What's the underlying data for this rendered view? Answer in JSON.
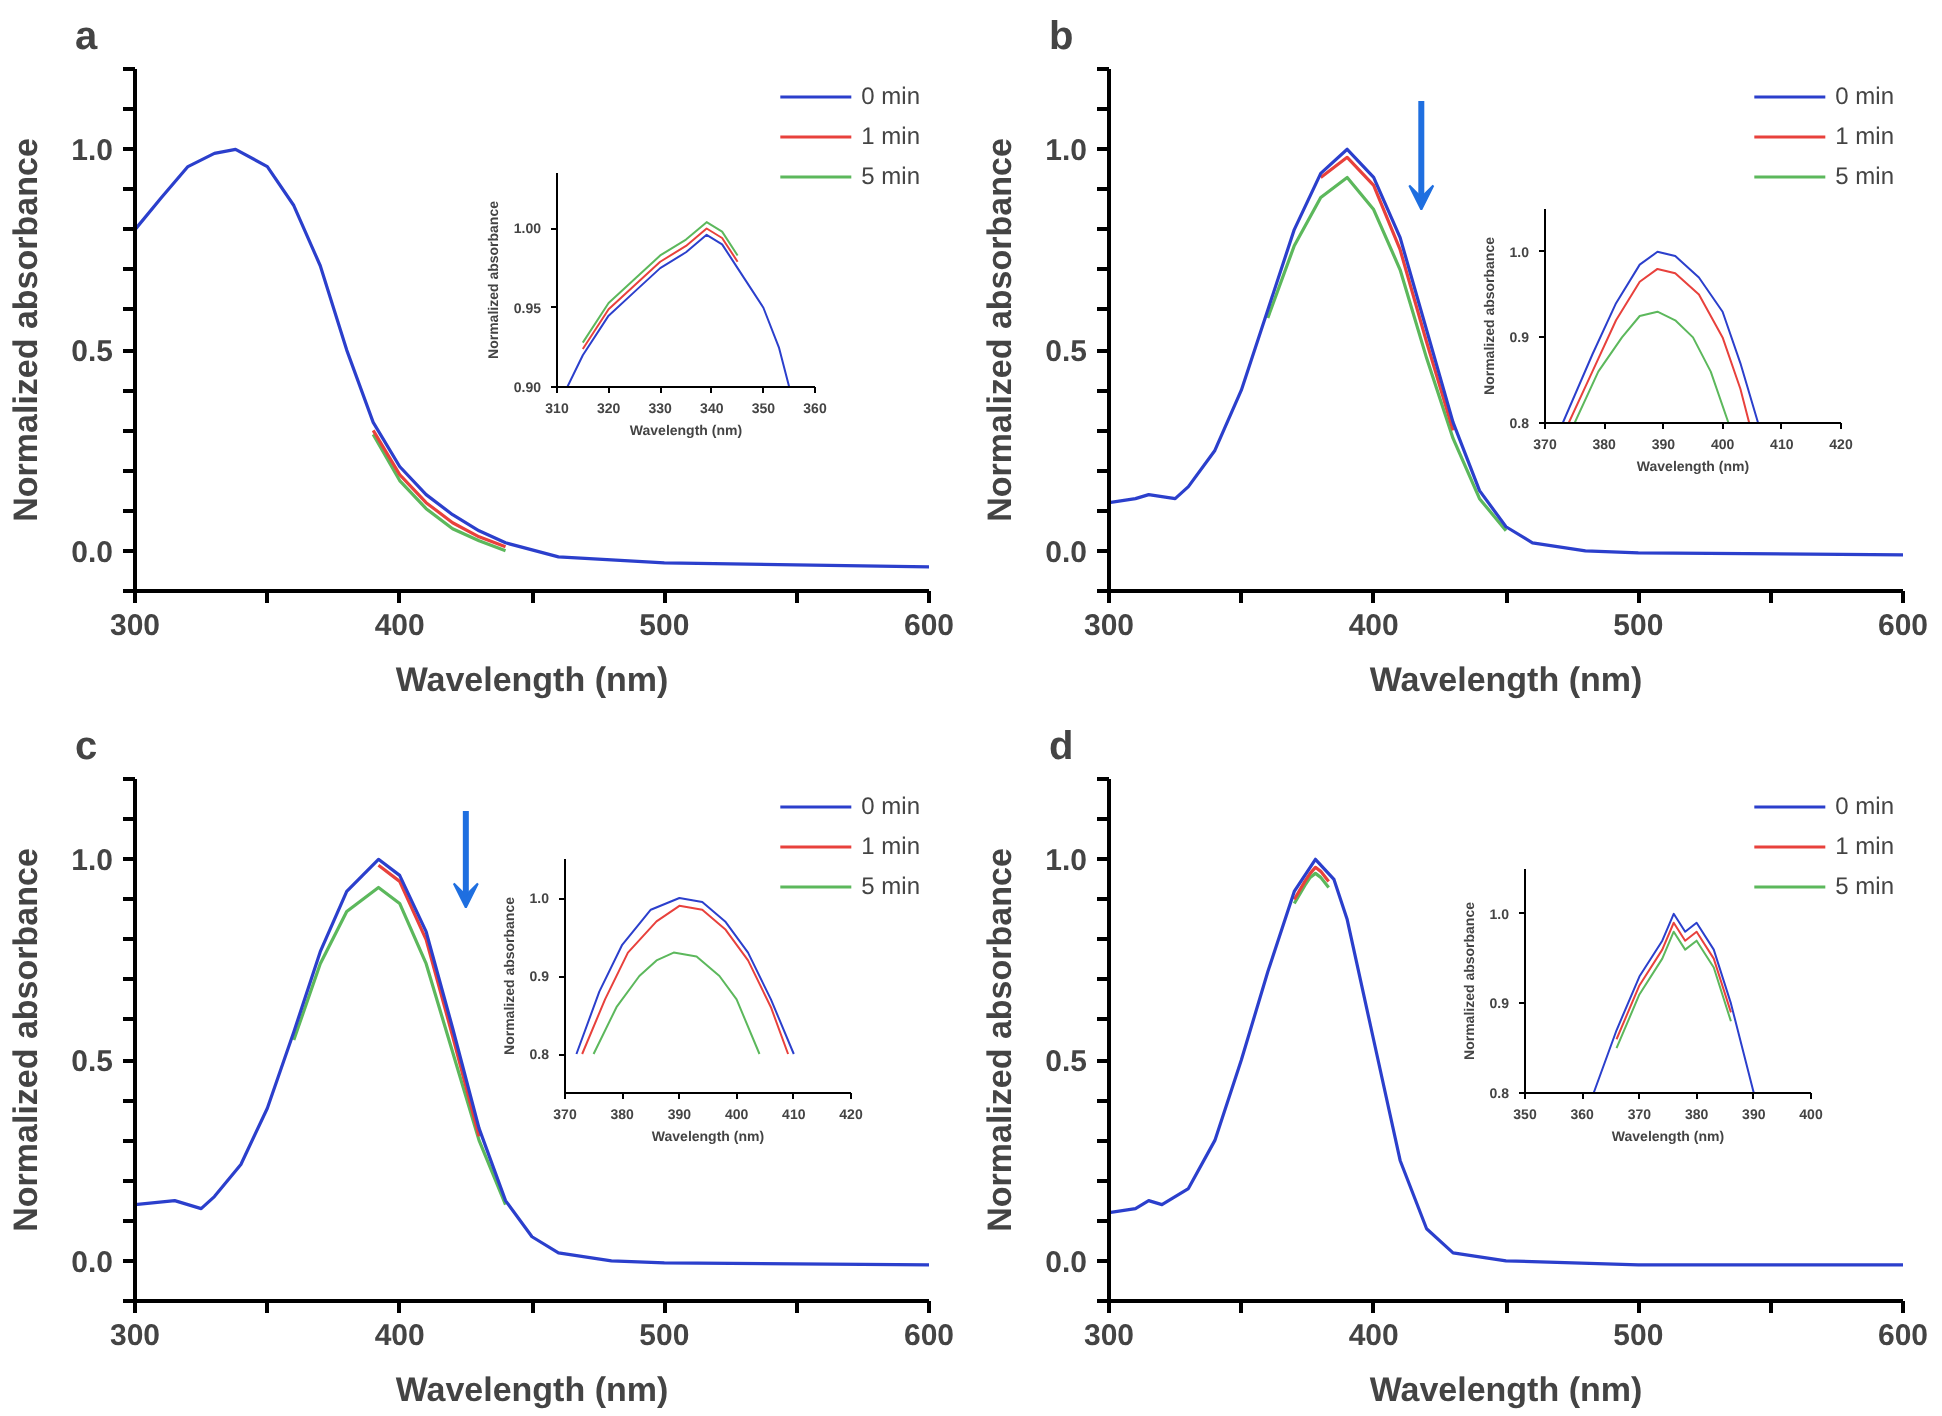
{
  "chart_data": [
    {
      "type": "line",
      "title": "a",
      "xlabel": "Wavelength (nm)",
      "ylabel": "Normalized absorbance",
      "xlim": [
        300,
        600
      ],
      "ylim": [
        -0.1,
        1.2
      ],
      "xticks": [
        300,
        {
          "value": 350,
          "label": null
        },
        400,
        {
          "value": 450,
          "label": null
        },
        500,
        {
          "value": 550,
          "label": null
        },
        600
      ],
      "yticks": [
        {
          "value": -0.1,
          "label": null
        },
        {
          "value": 0,
          "label": "0.0"
        },
        {
          "value": 0.1,
          "label": null
        },
        {
          "value": 0.2,
          "label": null
        },
        {
          "value": 0.3,
          "label": null
        },
        {
          "value": 0.4,
          "label": null
        },
        {
          "value": 0.5,
          "label": "0.5"
        },
        {
          "value": 0.6,
          "label": null
        },
        {
          "value": 0.7,
          "label": null
        },
        {
          "value": 0.8,
          "label": null
        },
        {
          "value": 0.9,
          "label": null
        },
        {
          "value": 1.0,
          "label": "1.0"
        },
        {
          "value": 1.1,
          "label": null
        },
        {
          "value": 1.2,
          "label": null
        }
      ],
      "legend": "top right",
      "series": [
        {
          "name": "0 min",
          "color": "#2b3fcc",
          "x": [
            300,
            310,
            320,
            330,
            338,
            350,
            360,
            370,
            380,
            390,
            400,
            410,
            420,
            430,
            440,
            460,
            500,
            600
          ],
          "values": [
            0.8,
            0.88,
            0.957,
            0.99,
            1.0,
            0.957,
            0.86,
            0.71,
            0.5,
            0.32,
            0.21,
            0.14,
            0.09,
            0.05,
            0.02,
            -0.015,
            -0.03,
            -0.04
          ]
        },
        {
          "name": "1 min",
          "color": "#e8413c",
          "x": [
            390,
            400,
            410,
            420,
            430,
            440
          ],
          "values": [
            0.3,
            0.19,
            0.12,
            0.07,
            0.035,
            0.01
          ]
        },
        {
          "name": "5 min",
          "color": "#5cb85c",
          "x": [
            390,
            400,
            410,
            420,
            430,
            440
          ],
          "values": [
            0.29,
            0.175,
            0.105,
            0.055,
            0.025,
            0.0
          ]
        }
      ]
    },
    {
      "type": "line",
      "xlabel": "Wavelength (nm)",
      "ylabel": "Normalized absorbance",
      "xlim": [
        310,
        360
      ],
      "ylim": [
        0.9,
        1.035
      ],
      "xticks": [
        310,
        320,
        330,
        340,
        350,
        360
      ],
      "yticks": [
        {
          "value": 0.9,
          "label": "0.90"
        },
        {
          "value": 0.95,
          "label": "0.95"
        },
        {
          "value": 1.0,
          "label": "1.00"
        }
      ],
      "series": [
        {
          "color": "#2b3fcc",
          "x": [
            312,
            315,
            320,
            325,
            330,
            335,
            339,
            342,
            345,
            350,
            353,
            355
          ],
          "values": [
            0.9,
            0.92,
            0.945,
            0.96,
            0.975,
            0.985,
            0.996,
            0.99,
            0.975,
            0.95,
            0.925,
            0.9
          ]
        },
        {
          "color": "#e8413c",
          "x": [
            315,
            320,
            325,
            330,
            335,
            339,
            342,
            345
          ],
          "values": [
            0.924,
            0.949,
            0.964,
            0.979,
            0.989,
            1.0,
            0.994,
            0.979
          ]
        },
        {
          "color": "#5cb85c",
          "x": [
            315,
            320,
            325,
            330,
            335,
            339,
            342,
            345
          ],
          "values": [
            0.928,
            0.953,
            0.968,
            0.983,
            0.993,
            1.004,
            0.998,
            0.983
          ]
        }
      ]
    },
    {
      "type": "line",
      "title": "b",
      "xlabel": "Wavelength (nm)",
      "ylabel": "Normalized absorbance",
      "xlim": [
        300,
        600
      ],
      "ylim": [
        -0.1,
        1.2
      ],
      "xticks": [
        300,
        {
          "value": 350,
          "label": null
        },
        400,
        {
          "value": 450,
          "label": null
        },
        500,
        {
          "value": 550,
          "label": null
        },
        600
      ],
      "yticks": [
        {
          "value": -0.1,
          "label": null
        },
        {
          "value": 0,
          "label": "0.0"
        },
        {
          "value": 0.1,
          "label": null
        },
        {
          "value": 0.2,
          "label": null
        },
        {
          "value": 0.3,
          "label": null
        },
        {
          "value": 0.4,
          "label": null
        },
        {
          "value": 0.5,
          "label": "0.5"
        },
        {
          "value": 0.6,
          "label": null
        },
        {
          "value": 0.7,
          "label": null
        },
        {
          "value": 0.8,
          "label": null
        },
        {
          "value": 0.9,
          "label": null
        },
        {
          "value": 1.0,
          "label": "1.0"
        },
        {
          "value": 1.1,
          "label": null
        },
        {
          "value": 1.2,
          "label": null
        }
      ],
      "legend": "top right",
      "series": [
        {
          "name": "0 min",
          "color": "#2b3fcc",
          "x": [
            300,
            310,
            315,
            325,
            330,
            340,
            350,
            360,
            370,
            380,
            390,
            400,
            410,
            420,
            430,
            440,
            450,
            460,
            480,
            500,
            600
          ],
          "values": [
            0.12,
            0.13,
            0.14,
            0.13,
            0.16,
            0.25,
            0.4,
            0.6,
            0.8,
            0.94,
            1.0,
            0.93,
            0.78,
            0.55,
            0.32,
            0.15,
            0.06,
            0.02,
            0.0,
            -0.005,
            -0.01
          ]
        },
        {
          "name": "1 min",
          "color": "#e8413c",
          "x": [
            380,
            390,
            400,
            410,
            420,
            430
          ],
          "values": [
            0.93,
            0.98,
            0.91,
            0.75,
            0.52,
            0.3
          ]
        },
        {
          "name": "5 min",
          "color": "#5cb85c",
          "x": [
            360,
            370,
            380,
            390,
            400,
            410,
            420,
            430,
            440,
            450
          ],
          "values": [
            0.58,
            0.76,
            0.88,
            0.93,
            0.85,
            0.7,
            0.48,
            0.28,
            0.13,
            0.05
          ]
        }
      ]
    },
    {
      "type": "line",
      "xlabel": "Wavelength (nm)",
      "ylabel": "Normalized absorbance",
      "xlim": [
        370,
        420
      ],
      "ylim": [
        0.8,
        1.05
      ],
      "xticks": [
        370,
        380,
        390,
        400,
        410,
        420
      ],
      "yticks": [
        {
          "value": 0.8,
          "label": "0.8"
        },
        {
          "value": 0.9,
          "label": "0.9"
        },
        {
          "value": 1.0,
          "label": "1.0"
        }
      ],
      "series": [
        {
          "color": "#2b3fcc",
          "x": [
            373,
            378,
            382,
            386,
            389,
            392,
            396,
            400,
            403,
            406
          ],
          "values": [
            0.8,
            0.88,
            0.94,
            0.985,
            1.0,
            0.995,
            0.97,
            0.93,
            0.87,
            0.8
          ]
        },
        {
          "color": "#e8413c",
          "x": [
            374,
            378,
            382,
            386,
            389,
            392,
            396,
            400,
            403,
            404.5
          ],
          "values": [
            0.8,
            0.86,
            0.92,
            0.965,
            0.98,
            0.975,
            0.95,
            0.9,
            0.84,
            0.8
          ]
        },
        {
          "color": "#5cb85c",
          "x": [
            375,
            379,
            383,
            386,
            389,
            392,
            395,
            398,
            401
          ],
          "values": [
            0.8,
            0.86,
            0.9,
            0.925,
            0.93,
            0.92,
            0.9,
            0.86,
            0.8
          ]
        }
      ]
    },
    {
      "type": "line",
      "title": "c",
      "xlabel": "Wavelength (nm)",
      "ylabel": "Normalized absorbance",
      "xlim": [
        300,
        600
      ],
      "ylim": [
        -0.1,
        1.2
      ],
      "xticks": [
        300,
        {
          "value": 350,
          "label": null
        },
        400,
        {
          "value": 450,
          "label": null
        },
        500,
        {
          "value": 550,
          "label": null
        },
        600
      ],
      "yticks": [
        {
          "value": -0.1,
          "label": null
        },
        {
          "value": 0,
          "label": "0.0"
        },
        {
          "value": 0.1,
          "label": null
        },
        {
          "value": 0.2,
          "label": null
        },
        {
          "value": 0.3,
          "label": null
        },
        {
          "value": 0.4,
          "label": null
        },
        {
          "value": 0.5,
          "label": "0.5"
        },
        {
          "value": 0.6,
          "label": null
        },
        {
          "value": 0.7,
          "label": null
        },
        {
          "value": 0.8,
          "label": null
        },
        {
          "value": 0.9,
          "label": null
        },
        {
          "value": 1.0,
          "label": "1.0"
        },
        {
          "value": 1.1,
          "label": null
        },
        {
          "value": 1.2,
          "label": null
        }
      ],
      "legend": "top right",
      "series": [
        {
          "name": "0 min",
          "color": "#2b3fcc",
          "x": [
            300,
            315,
            325,
            330,
            340,
            350,
            360,
            370,
            380,
            392,
            400,
            410,
            420,
            430,
            440,
            450,
            460,
            480,
            500,
            600
          ],
          "values": [
            0.14,
            0.15,
            0.13,
            0.16,
            0.24,
            0.38,
            0.57,
            0.77,
            0.92,
            1.0,
            0.96,
            0.82,
            0.58,
            0.33,
            0.15,
            0.06,
            0.02,
            0.0,
            -0.005,
            -0.01
          ]
        },
        {
          "name": "1 min",
          "color": "#e8413c",
          "x": [
            392,
            400,
            410,
            420,
            430
          ],
          "values": [
            0.985,
            0.945,
            0.8,
            0.56,
            0.31
          ]
        },
        {
          "name": "5 min",
          "color": "#5cb85c",
          "x": [
            360,
            370,
            380,
            392,
            400,
            410,
            420,
            430,
            440
          ],
          "values": [
            0.55,
            0.74,
            0.87,
            0.93,
            0.89,
            0.74,
            0.52,
            0.3,
            0.14
          ]
        }
      ]
    },
    {
      "type": "line",
      "xlabel": "Wavelength (nm)",
      "ylabel": "Normalized absorbance",
      "xlim": [
        370,
        420
      ],
      "ylim": [
        0.75,
        1.05
      ],
      "xticks": [
        370,
        380,
        390,
        400,
        410,
        420
      ],
      "yticks": [
        {
          "value": 0.8,
          "label": "0.8"
        },
        {
          "value": 0.9,
          "label": "0.9"
        },
        {
          "value": 1.0,
          "label": "1.0"
        }
      ],
      "series": [
        {
          "color": "#2b3fcc",
          "x": [
            372,
            376,
            380,
            385,
            390,
            394,
            398,
            402,
            406,
            410
          ],
          "values": [
            0.8,
            0.88,
            0.94,
            0.985,
            1.0,
            0.995,
            0.97,
            0.93,
            0.87,
            0.8
          ]
        },
        {
          "color": "#e8413c",
          "x": [
            373,
            377,
            381,
            386,
            390,
            394,
            398,
            402,
            406,
            409
          ],
          "values": [
            0.8,
            0.87,
            0.93,
            0.97,
            0.99,
            0.985,
            0.96,
            0.92,
            0.86,
            0.8
          ]
        },
        {
          "color": "#5cb85c",
          "x": [
            375,
            379,
            383,
            386,
            389,
            393,
            397,
            400,
            404
          ],
          "values": [
            0.8,
            0.86,
            0.9,
            0.92,
            0.93,
            0.925,
            0.9,
            0.87,
            0.8
          ]
        }
      ]
    },
    {
      "type": "line",
      "title": "d",
      "xlabel": "Wavelength (nm)",
      "ylabel": "Normalized absorbance",
      "xlim": [
        300,
        600
      ],
      "ylim": [
        -0.1,
        1.2
      ],
      "xticks": [
        300,
        {
          "value": 350,
          "label": null
        },
        400,
        {
          "value": 450,
          "label": null
        },
        500,
        {
          "value": 550,
          "label": null
        },
        600
      ],
      "yticks": [
        {
          "value": -0.1,
          "label": null
        },
        {
          "value": 0,
          "label": "0.0"
        },
        {
          "value": 0.1,
          "label": null
        },
        {
          "value": 0.2,
          "label": null
        },
        {
          "value": 0.3,
          "label": null
        },
        {
          "value": 0.4,
          "label": null
        },
        {
          "value": 0.5,
          "label": "0.5"
        },
        {
          "value": 0.6,
          "label": null
        },
        {
          "value": 0.7,
          "label": null
        },
        {
          "value": 0.8,
          "label": null
        },
        {
          "value": 0.9,
          "label": null
        },
        {
          "value": 1.0,
          "label": "1.0"
        },
        {
          "value": 1.1,
          "label": null
        },
        {
          "value": 1.2,
          "label": null
        }
      ],
      "legend": "top right",
      "series": [
        {
          "name": "0 min",
          "color": "#2b3fcc",
          "x": [
            300,
            310,
            315,
            320,
            330,
            340,
            350,
            360,
            370,
            378,
            385,
            390,
            400,
            410,
            420,
            430,
            450,
            500,
            600
          ],
          "values": [
            0.12,
            0.13,
            0.15,
            0.14,
            0.18,
            0.3,
            0.5,
            0.72,
            0.92,
            1.0,
            0.95,
            0.85,
            0.55,
            0.25,
            0.08,
            0.02,
            0.0,
            -0.01,
            -0.01
          ]
        },
        {
          "name": "1 min",
          "color": "#e8413c",
          "x": [
            370,
            374,
            376,
            378,
            380,
            383
          ],
          "values": [
            0.9,
            0.945,
            0.965,
            0.98,
            0.97,
            0.945
          ]
        },
        {
          "name": "5 min",
          "color": "#5cb85c",
          "x": [
            370,
            374,
            376,
            378,
            380,
            383
          ],
          "values": [
            0.89,
            0.935,
            0.955,
            0.965,
            0.955,
            0.93
          ]
        }
      ]
    },
    {
      "type": "line",
      "xlabel": "Wavelength (nm)",
      "ylabel": "Normalized absorbance",
      "xlim": [
        350,
        400
      ],
      "ylim": [
        0.8,
        1.05
      ],
      "xticks": [
        350,
        360,
        370,
        380,
        390,
        400
      ],
      "yticks": [
        {
          "value": 0.8,
          "label": "0.8"
        },
        {
          "value": 0.9,
          "label": "0.9"
        },
        {
          "value": 1.0,
          "label": "1.0"
        }
      ],
      "series": [
        {
          "color": "#2b3fcc",
          "x": [
            362,
            366,
            370,
            374,
            376,
            378,
            380,
            383,
            386,
            390
          ],
          "values": [
            0.8,
            0.87,
            0.93,
            0.97,
            1.0,
            0.98,
            0.99,
            0.96,
            0.9,
            0.8
          ]
        },
        {
          "color": "#e8413c",
          "x": [
            366,
            370,
            374,
            376,
            378,
            380,
            383,
            386
          ],
          "values": [
            0.86,
            0.92,
            0.96,
            0.99,
            0.97,
            0.98,
            0.95,
            0.89
          ]
        },
        {
          "color": "#5cb85c",
          "x": [
            366,
            370,
            374,
            376,
            378,
            380,
            383,
            386
          ],
          "values": [
            0.85,
            0.91,
            0.95,
            0.98,
            0.96,
            0.97,
            0.94,
            0.88
          ]
        }
      ]
    }
  ]
}
